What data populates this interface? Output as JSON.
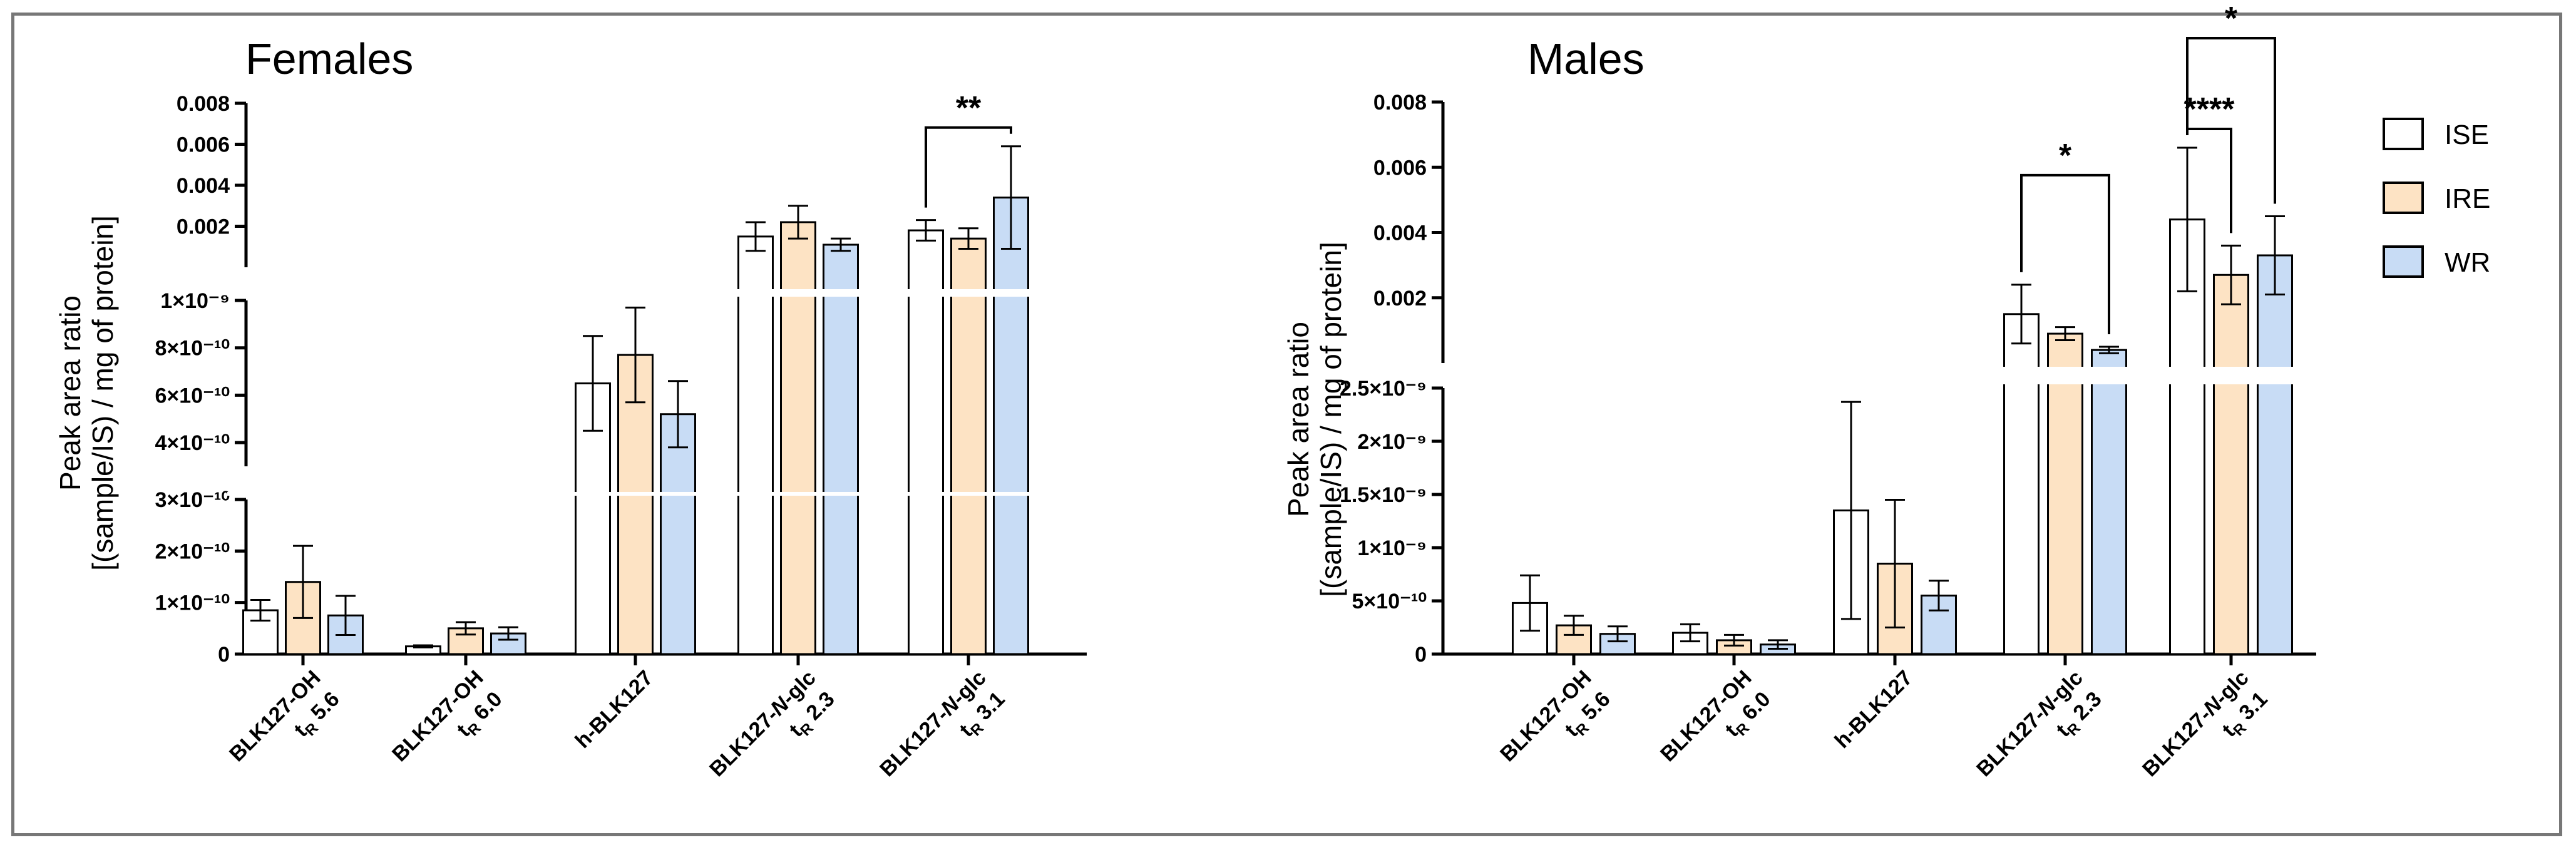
{
  "chart_data": [
    {
      "type": "bar",
      "panel": "females",
      "title": "Females",
      "ylabel_line1": "Peak area ratio",
      "ylabel_line2": "[(sample/IS) / mg of protein]",
      "categories": [
        {
          "name": "BLK127-OH",
          "name_plain": "",
          "name_italic": "",
          "rt": "5.6"
        },
        {
          "name": "BLK127-OH",
          "name_plain": "",
          "name_italic": "",
          "rt": "6.0"
        },
        {
          "name": "h-BLK127",
          "name_plain": "",
          "name_italic": "",
          "rt": ""
        },
        {
          "name": "BLK127-",
          "name_plain": "BLK127-",
          "name_italic": "N",
          "name_suffix": "-glc",
          "rt": "2.3"
        },
        {
          "name": "BLK127-",
          "name_plain": "BLK127-",
          "name_italic": "N",
          "name_suffix": "-glc",
          "rt": "3.1"
        }
      ],
      "rt_prefix": "t",
      "rt_sub": "R",
      "series": [
        {
          "name": "ISE",
          "values": [
            8.5e-11,
            1.5e-11,
            6.5e-10,
            0.0015,
            0.0018
          ],
          "errors": [
            2e-11,
            2e-12,
            2e-10,
            0.0007,
            0.0005
          ]
        },
        {
          "name": "IRE",
          "values": [
            1.4e-10,
            5e-11,
            7.7e-10,
            0.0022,
            0.0014
          ],
          "errors": [
            7e-11,
            1.2e-11,
            2e-10,
            0.0008,
            0.0005
          ]
        },
        {
          "name": "WR",
          "values": [
            7.5e-11,
            4e-11,
            5.2e-10,
            0.0011,
            0.0034
          ],
          "errors": [
            3.8e-11,
            1.2e-11,
            1.4e-10,
            0.0003,
            0.0025
          ]
        }
      ],
      "segments": [
        {
          "ylim": [
            0,
            3e-10
          ],
          "ticks": [
            0,
            1e-10,
            2e-10,
            3e-10
          ],
          "tick_labels": [
            "0",
            "1×10⁻¹⁰",
            "2×10⁻¹⁰",
            "3×10⁻¹⁰"
          ]
        },
        {
          "ylim": [
            3e-10,
            1e-09
          ],
          "ticks": [
            4e-10,
            6e-10,
            8e-10,
            1e-09
          ],
          "tick_labels": [
            "4×10⁻¹⁰",
            "6×10⁻¹⁰",
            "8×10⁻¹⁰",
            "1×10⁻⁹"
          ]
        },
        {
          "ylim": [
            0,
            0.008
          ],
          "ticks": [
            0.002,
            0.004,
            0.006,
            0.008
          ],
          "tick_labels": [
            "0.002",
            "0.004",
            "0.006",
            "0.008"
          ]
        }
      ],
      "significance": [
        {
          "category": 4,
          "from_series": 0,
          "to_series": 2,
          "label": "**"
        }
      ]
    },
    {
      "type": "bar",
      "panel": "males",
      "title": "Males",
      "ylabel_line1": "Peak area ratio",
      "ylabel_line2": "[(sample/IS) / mg of protein]",
      "categories": [
        {
          "name": "BLK127-OH",
          "name_plain": "",
          "name_italic": "",
          "rt": "5.6"
        },
        {
          "name": "BLK127-OH",
          "name_plain": "",
          "name_italic": "",
          "rt": "6.0"
        },
        {
          "name": "h-BLK127",
          "name_plain": "",
          "name_italic": "",
          "rt": ""
        },
        {
          "name": "BLK127-",
          "name_plain": "BLK127-",
          "name_italic": "N",
          "name_suffix": "-glc",
          "rt": "2.3"
        },
        {
          "name": "BLK127-",
          "name_plain": "BLK127-",
          "name_italic": "N",
          "name_suffix": "-glc",
          "rt": "3.1"
        }
      ],
      "rt_prefix": "t",
      "rt_sub": "R",
      "series": [
        {
          "name": "ISE",
          "values": [
            4.8e-10,
            2e-10,
            1.35e-09,
            0.0015,
            0.0044
          ],
          "errors": [
            2.6e-10,
            8e-11,
            1.02e-09,
            0.0009,
            0.0022
          ]
        },
        {
          "name": "IRE",
          "values": [
            2.7e-10,
            1.3e-10,
            8.5e-10,
            0.0009,
            0.0027
          ],
          "errors": [
            9e-11,
            5e-11,
            6e-10,
            0.0002,
            0.0009
          ]
        },
        {
          "name": "WR",
          "values": [
            1.9e-10,
            9e-11,
            5.5e-10,
            0.0004,
            0.0033
          ],
          "errors": [
            7e-11,
            4e-11,
            1.4e-10,
            0.0001,
            0.0012
          ]
        }
      ],
      "segments": [
        {
          "ylim": [
            0,
            2.5e-09
          ],
          "ticks": [
            0,
            5e-10,
            1e-09,
            1.5e-09,
            2e-09,
            2.5e-09
          ],
          "tick_labels": [
            "0",
            "5×10⁻¹⁰",
            "1×10⁻⁹",
            "1.5×10⁻⁹",
            "2×10⁻⁹",
            "2.5×10⁻⁹"
          ]
        },
        {
          "ylim": [
            0,
            0.008
          ],
          "ticks": [
            0.002,
            0.004,
            0.006,
            0.008
          ],
          "tick_labels": [
            "0.002",
            "0.004",
            "0.006",
            "0.008"
          ]
        }
      ],
      "significance": [
        {
          "category": 3,
          "from_series": 0,
          "to_series": 2,
          "label": "*"
        },
        {
          "category": 4,
          "from_series": 0,
          "to_series": 1,
          "label": "****"
        },
        {
          "category": 4,
          "from_series": 0,
          "to_series": 2,
          "label": "*"
        }
      ]
    }
  ],
  "legend": [
    {
      "label": "ISE",
      "color": "#ffffff"
    },
    {
      "label": "IRE",
      "color": "#fde3c4"
    },
    {
      "label": "WR",
      "color": "#c8dcf5"
    }
  ],
  "colors": {
    "ISE": "#ffffff",
    "IRE": "#fde3c4",
    "WR": "#c8dcf5",
    "stroke": "#000000",
    "frame": "#777777"
  }
}
